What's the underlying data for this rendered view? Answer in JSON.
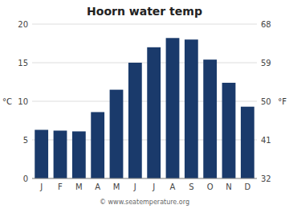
{
  "chart_data": {
    "type": "bar",
    "title": "Hoorn water temp",
    "categories": [
      "J",
      "F",
      "M",
      "A",
      "M",
      "J",
      "J",
      "A",
      "S",
      "O",
      "N",
      "D"
    ],
    "values": [
      6.3,
      6.2,
      6.1,
      8.6,
      11.5,
      15.0,
      17.0,
      18.2,
      18.0,
      15.4,
      12.4,
      9.3
    ],
    "color": "#1a3a6b",
    "y_label": "°C",
    "ylim": [
      0,
      20
    ],
    "yticks": [
      0,
      5,
      10,
      15,
      20
    ],
    "y2_label": "°F",
    "y2lim": [
      32,
      68
    ],
    "y2ticks": [
      32,
      41,
      50,
      59,
      68
    ],
    "annotations": [
      "© www.seatemperature.org"
    ],
    "grid": true
  }
}
